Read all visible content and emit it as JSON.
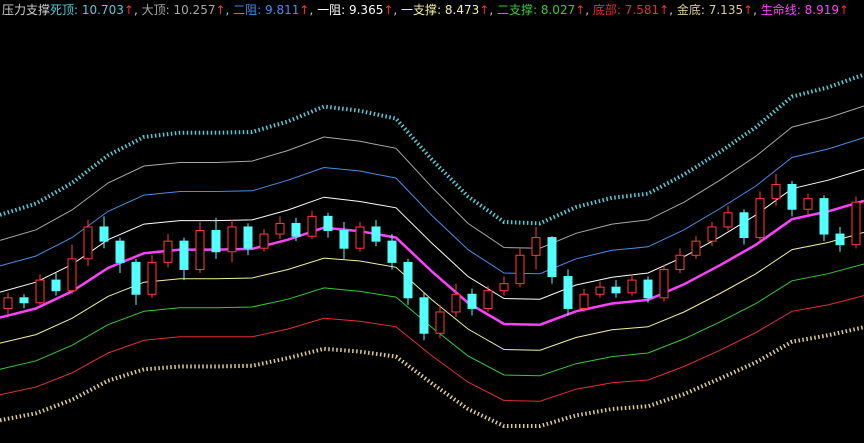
{
  "chart_data": {
    "type": "candlestick",
    "title": "压力支撑",
    "name_separator": ": ",
    "item_delimiter": ", ",
    "arrow": "↑",
    "arrow_color": "#ff3030",
    "title_color": "#d0d0d0",
    "background": "#000000",
    "ylim": [
      5.5,
      11.5
    ],
    "up_color": "#ff3c3c",
    "down_color": "#54ffff",
    "candles": {
      "open": [
        7.4,
        7.55,
        7.48,
        7.8,
        7.65,
        8.1,
        8.55,
        8.35,
        8.05,
        7.6,
        8.05,
        8.35,
        7.95,
        8.5,
        8.2,
        8.55,
        8.25,
        8.45,
        8.6,
        8.42,
        8.7,
        8.5,
        8.25,
        8.55,
        8.35,
        8.05,
        7.55,
        7.05,
        7.35,
        7.6,
        7.4,
        7.65,
        7.75,
        8.15,
        8.4,
        7.85,
        7.4,
        7.6,
        7.7,
        7.62,
        7.8,
        7.55,
        7.95,
        8.15,
        8.35,
        8.55,
        8.75,
        8.4,
        8.95,
        9.15,
        8.8,
        8.95,
        8.45,
        8.3
      ],
      "high": [
        7.62,
        7.6,
        7.88,
        7.9,
        8.3,
        8.65,
        8.7,
        8.4,
        8.1,
        8.15,
        8.45,
        8.4,
        8.62,
        8.68,
        8.65,
        8.6,
        8.52,
        8.7,
        8.68,
        8.78,
        8.75,
        8.62,
        8.62,
        8.65,
        8.45,
        8.1,
        7.62,
        7.45,
        7.75,
        7.68,
        7.72,
        7.85,
        8.25,
        8.55,
        8.42,
        7.95,
        7.68,
        7.78,
        7.8,
        7.88,
        7.85,
        8.02,
        8.25,
        8.42,
        8.62,
        8.85,
        8.8,
        9.05,
        9.3,
        9.2,
        9.02,
        9.0,
        8.55,
        8.98
      ],
      "low": [
        7.32,
        7.4,
        7.45,
        7.58,
        7.6,
        8.0,
        8.25,
        7.9,
        7.45,
        7.55,
        7.98,
        7.8,
        7.9,
        8.1,
        8.05,
        8.15,
        8.2,
        8.38,
        8.35,
        8.38,
        8.4,
        8.1,
        8.2,
        8.28,
        7.95,
        7.45,
        6.95,
        6.98,
        7.28,
        7.3,
        7.35,
        7.58,
        7.7,
        7.95,
        7.75,
        7.3,
        7.35,
        7.55,
        7.55,
        7.58,
        7.48,
        7.5,
        7.9,
        8.1,
        8.28,
        8.5,
        8.3,
        8.35,
        8.85,
        8.7,
        8.72,
        8.35,
        8.2,
        8.25
      ],
      "close": [
        7.55,
        7.48,
        7.8,
        7.65,
        8.1,
        8.55,
        8.35,
        8.05,
        7.6,
        8.05,
        8.35,
        7.95,
        8.5,
        8.2,
        8.55,
        8.25,
        8.45,
        8.6,
        8.42,
        8.7,
        8.5,
        8.25,
        8.55,
        8.35,
        8.05,
        7.55,
        7.05,
        7.35,
        7.6,
        7.4,
        7.65,
        7.75,
        8.15,
        8.4,
        7.85,
        7.4,
        7.6,
        7.7,
        7.62,
        7.8,
        7.55,
        7.95,
        8.15,
        8.35,
        8.55,
        8.75,
        8.4,
        8.95,
        9.15,
        8.8,
        8.95,
        8.45,
        8.3,
        8.9
      ]
    },
    "series": [
      {
        "name": "死顶",
        "color": "#5cc8d8",
        "line_style": "crosses",
        "values": [
          8.72,
          8.88,
          9.17,
          9.56,
          9.82,
          9.88,
          9.88,
          9.89,
          10.04,
          10.25,
          10.19,
          10.08,
          9.5,
          8.98,
          8.62,
          8.6,
          8.83,
          8.96,
          9.02,
          9.29,
          9.61,
          9.96,
          10.39,
          10.52,
          10.703
        ]
      },
      {
        "name": "大顶",
        "color": "#a8a8a8",
        "line_style": "solid",
        "values": [
          8.36,
          8.51,
          8.79,
          9.17,
          9.41,
          9.46,
          9.46,
          9.48,
          9.63,
          9.82,
          9.76,
          9.66,
          9.11,
          8.6,
          8.26,
          8.25,
          8.46,
          8.59,
          8.65,
          8.9,
          9.21,
          9.55,
          9.96,
          10.09,
          10.257
        ]
      },
      {
        "name": "二阻",
        "color": "#4a8ce8",
        "line_style": "solid",
        "values": [
          8.0,
          8.14,
          8.4,
          8.77,
          9.0,
          9.05,
          9.05,
          9.06,
          9.21,
          9.39,
          9.34,
          9.24,
          8.71,
          8.23,
          7.9,
          7.89,
          8.1,
          8.22,
          8.27,
          8.51,
          8.81,
          9.13,
          9.53,
          9.65,
          9.811
        ]
      },
      {
        "name": "一阻",
        "color": "#ffffff",
        "line_style": "solid",
        "values": [
          7.63,
          7.77,
          8.02,
          8.37,
          8.59,
          8.64,
          8.64,
          8.65,
          8.79,
          8.97,
          8.91,
          8.82,
          8.32,
          7.85,
          7.54,
          7.53,
          7.73,
          7.84,
          7.9,
          8.13,
          8.41,
          8.72,
          9.09,
          9.21,
          9.365
        ]
      },
      {
        "name": "一支撑",
        "color": "#f4f0a0",
        "line_style": "solid",
        "values": [
          6.91,
          7.03,
          7.26,
          7.57,
          7.77,
          7.82,
          7.82,
          7.83,
          7.95,
          8.11,
          8.07,
          7.98,
          7.52,
          7.11,
          6.82,
          6.81,
          6.99,
          7.1,
          7.14,
          7.35,
          7.61,
          7.89,
          8.23,
          8.33,
          8.473
        ]
      },
      {
        "name": "二支撑",
        "color": "#38c838",
        "line_style": "solid",
        "values": [
          6.54,
          6.66,
          6.88,
          7.17,
          7.36,
          7.41,
          7.41,
          7.42,
          7.53,
          7.69,
          7.64,
          7.56,
          7.13,
          6.73,
          6.46,
          6.45,
          6.62,
          6.72,
          6.77,
          6.97,
          7.21,
          7.47,
          7.79,
          7.89,
          8.027
        ]
      },
      {
        "name": "底部",
        "color": "#e03030",
        "line_style": "solid",
        "values": [
          6.18,
          6.29,
          6.49,
          6.77,
          6.95,
          7.0,
          7.0,
          7.0,
          7.11,
          7.26,
          7.22,
          7.14,
          6.73,
          6.36,
          6.1,
          6.09,
          6.26,
          6.35,
          6.39,
          6.58,
          6.81,
          7.06,
          7.36,
          7.45,
          7.581
        ]
      },
      {
        "name": "金底",
        "color": "#dccb94",
        "line_style": "crosses",
        "values": [
          5.82,
          5.92,
          6.11,
          6.38,
          6.54,
          6.58,
          6.58,
          6.59,
          6.7,
          6.83,
          6.79,
          6.72,
          6.34,
          5.98,
          5.74,
          5.74,
          5.89,
          5.98,
          6.02,
          6.19,
          6.41,
          6.64,
          6.93,
          7.02,
          7.135
        ]
      },
      {
        "name": "生命线",
        "color": "#ff40ff",
        "line_style": "bold",
        "values": [
          7.27,
          7.4,
          7.64,
          7.97,
          8.18,
          8.23,
          8.23,
          8.24,
          8.37,
          8.54,
          8.49,
          8.4,
          7.92,
          7.48,
          7.18,
          7.17,
          7.36,
          7.47,
          7.52,
          7.74,
          8.01,
          8.3,
          8.66,
          8.77,
          8.919
        ]
      }
    ]
  }
}
